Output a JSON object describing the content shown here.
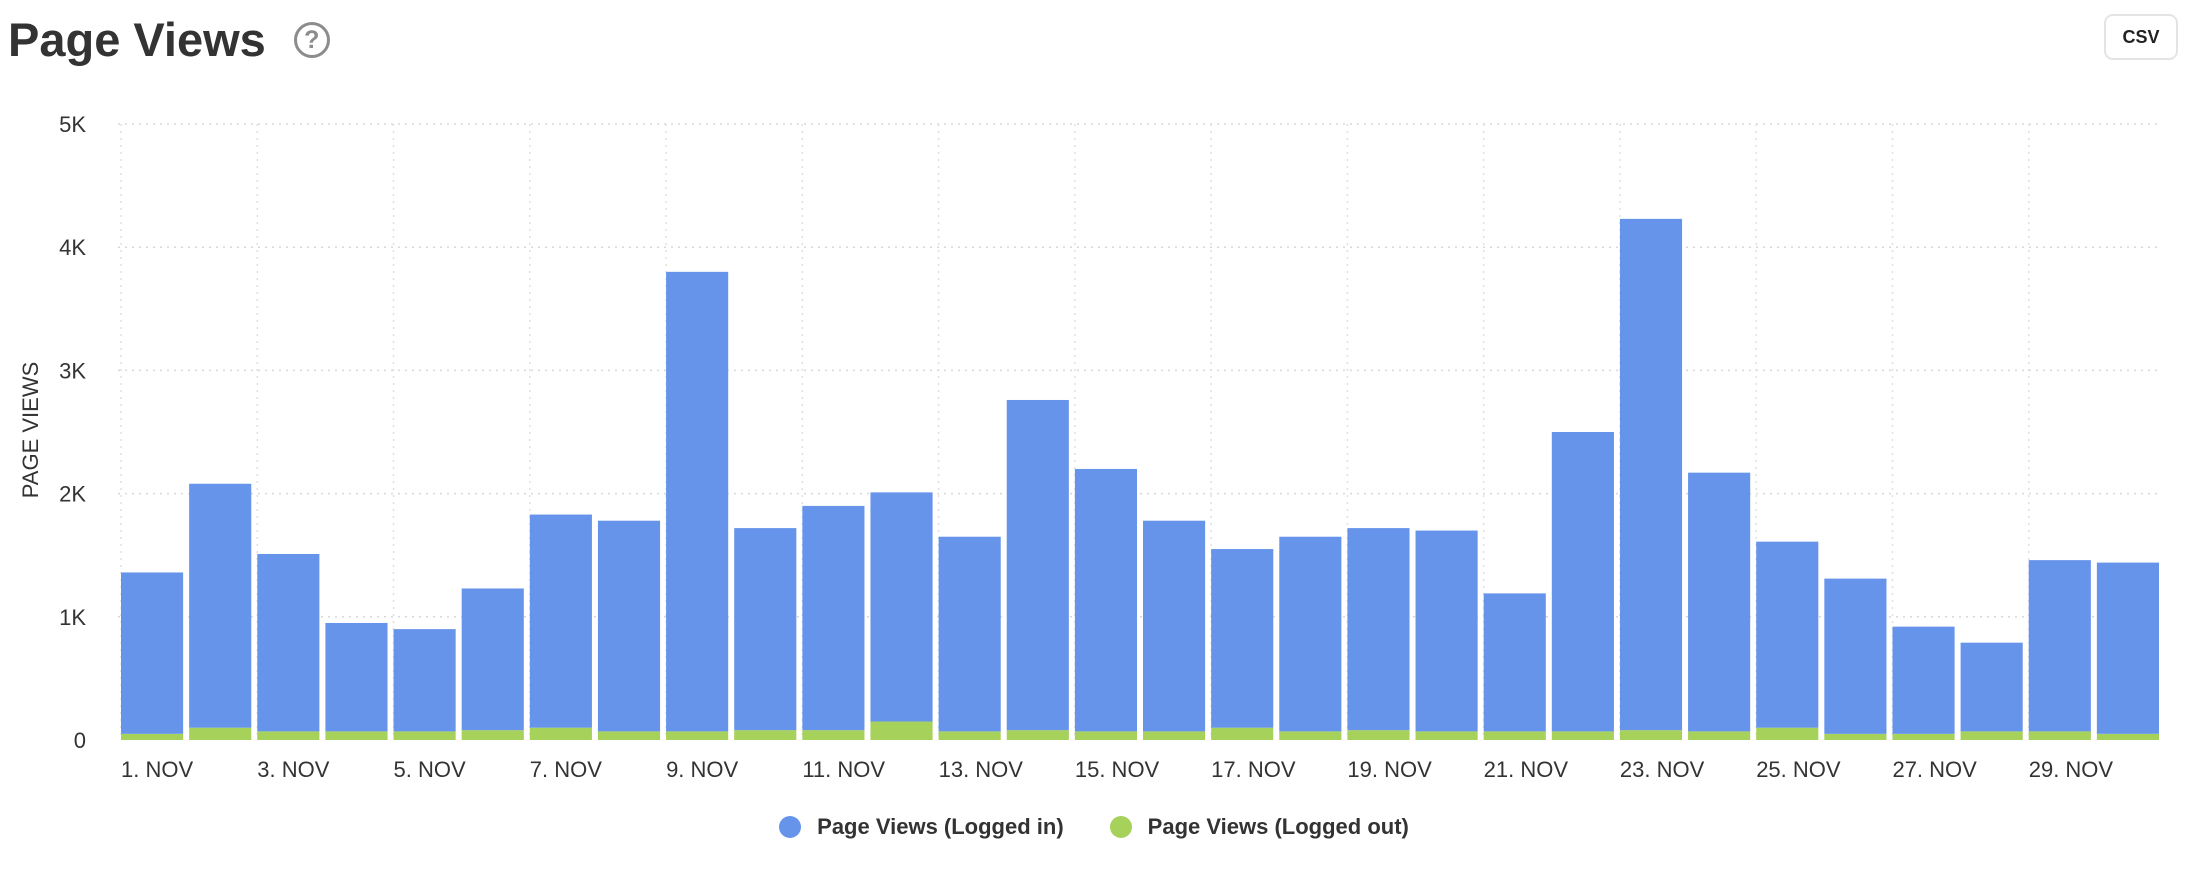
{
  "header": {
    "title": "Page Views",
    "help_icon": "question-circle-icon",
    "csv_label": "CSV"
  },
  "chart_data": {
    "type": "bar",
    "stacked": true,
    "ylabel": "PAGE VIEWS",
    "ylim": [
      0,
      5000
    ],
    "yticks": [
      0,
      1000,
      2000,
      3000,
      4000,
      5000
    ],
    "ytick_labels": [
      "0",
      "1K",
      "2K",
      "3K",
      "4K",
      "5K"
    ],
    "grid": true,
    "legend_position": "bottom",
    "categories": [
      "1. NOV",
      "2. NOV",
      "3. NOV",
      "4. NOV",
      "5. NOV",
      "6. NOV",
      "7. NOV",
      "8. NOV",
      "9. NOV",
      "10. NOV",
      "11. NOV",
      "12. NOV",
      "13. NOV",
      "14. NOV",
      "15. NOV",
      "16. NOV",
      "17. NOV",
      "18. NOV",
      "19. NOV",
      "20. NOV",
      "21. NOV",
      "22. NOV",
      "23. NOV",
      "24. NOV",
      "25. NOV",
      "26. NOV",
      "27. NOV",
      "28. NOV",
      "29. NOV",
      "30. NOV"
    ],
    "xtick_labels": [
      "1. NOV",
      "3. NOV",
      "5. NOV",
      "7. NOV",
      "9. NOV",
      "11. NOV",
      "13. NOV",
      "15. NOV",
      "17. NOV",
      "19. NOV",
      "21. NOV",
      "23. NOV",
      "25. NOV",
      "27. NOV",
      "29. NOV"
    ],
    "series": [
      {
        "name": "Page Views (Logged out)",
        "color": "#a6d15a",
        "values": [
          50,
          100,
          70,
          70,
          70,
          80,
          100,
          70,
          70,
          80,
          80,
          150,
          70,
          80,
          70,
          70,
          100,
          70,
          80,
          70,
          70,
          70,
          80,
          70,
          100,
          50,
          50,
          70,
          70,
          50
        ]
      },
      {
        "name": "Page Views (Logged in)",
        "color": "#6794eb",
        "values": [
          1310,
          1980,
          1440,
          880,
          830,
          1150,
          1730,
          1710,
          3730,
          1640,
          1820,
          1860,
          1580,
          2680,
          2130,
          1710,
          1450,
          1580,
          1640,
          1630,
          1120,
          2430,
          4150,
          2100,
          1510,
          1260,
          870,
          720,
          1390,
          1390
        ]
      }
    ]
  }
}
